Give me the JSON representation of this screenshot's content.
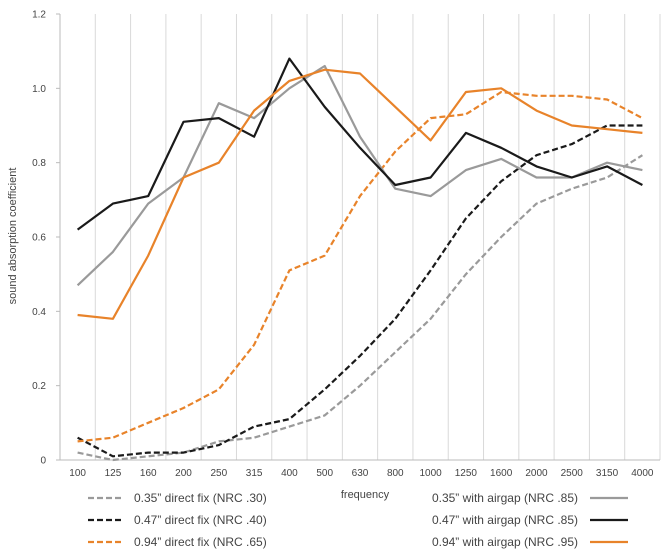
{
  "chart_data": {
    "type": "line",
    "xlabel": "frequency",
    "ylabel": "sound absorption coefficient",
    "ylim": [
      0,
      1.2
    ],
    "yticks": [
      "0",
      "0.2",
      "0.4",
      "0.6",
      "0.8",
      "1.0",
      "1.2"
    ],
    "categories": [
      "100",
      "125",
      "160",
      "200",
      "250",
      "315",
      "400",
      "500",
      "630",
      "800",
      "1000",
      "1250",
      "1600",
      "2000",
      "2500",
      "3150",
      "4000"
    ],
    "grid": "vertical",
    "legend": "bottom",
    "series": [
      {
        "name": "0.35” direct fix (NRC .30)",
        "color": "#9a9a9a",
        "dash": "dashed",
        "values": [
          0.02,
          0.0,
          0.01,
          0.02,
          0.05,
          0.06,
          0.09,
          0.12,
          0.2,
          0.29,
          0.38,
          0.5,
          0.6,
          0.69,
          0.73,
          0.76,
          0.82
        ]
      },
      {
        "name": "0.47” direct fix (NRC .40)",
        "color": "#1a1a1a",
        "dash": "dashed",
        "values": [
          0.06,
          0.01,
          0.02,
          0.02,
          0.04,
          0.09,
          0.11,
          0.19,
          0.28,
          0.38,
          0.51,
          0.65,
          0.75,
          0.82,
          0.85,
          0.9,
          0.9
        ]
      },
      {
        "name": "0.94” direct fix (NRC .65)",
        "color": "#e8832a",
        "dash": "dashed",
        "values": [
          0.05,
          0.06,
          0.1,
          0.14,
          0.19,
          0.31,
          0.51,
          0.55,
          0.71,
          0.83,
          0.92,
          0.93,
          0.99,
          0.98,
          0.98,
          0.97,
          0.92
        ]
      },
      {
        "name": "0.35” with airgap (NRC .85)",
        "color": "#9a9a9a",
        "dash": "solid",
        "values": [
          0.47,
          0.56,
          0.69,
          0.76,
          0.96,
          0.92,
          1.0,
          1.06,
          0.87,
          0.73,
          0.71,
          0.78,
          0.81,
          0.76,
          0.76,
          0.8,
          0.78
        ]
      },
      {
        "name": "0.47” with airgap (NRC .85)",
        "color": "#1a1a1a",
        "dash": "solid",
        "values": [
          0.62,
          0.69,
          0.71,
          0.91,
          0.92,
          0.87,
          1.08,
          0.95,
          0.84,
          0.74,
          0.76,
          0.88,
          0.84,
          0.79,
          0.76,
          0.79,
          0.74
        ]
      },
      {
        "name": "0.94” with airgap (NRC .95)",
        "color": "#e8832a",
        "dash": "solid",
        "values": [
          0.39,
          0.38,
          0.55,
          0.76,
          0.8,
          0.94,
          1.02,
          1.05,
          1.04,
          0.95,
          0.86,
          0.99,
          1.0,
          0.94,
          0.9,
          0.89,
          0.88
        ]
      }
    ]
  }
}
